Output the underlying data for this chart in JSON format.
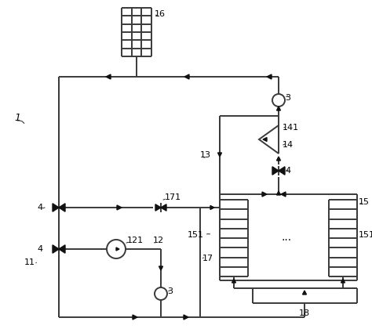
{
  "bg_color": "#ffffff",
  "line_color": "#3a3a3a",
  "line_width": 1.4,
  "arrow_color": "#111111",
  "figsize": [
    4.74,
    4.29
  ],
  "dpi": 100
}
